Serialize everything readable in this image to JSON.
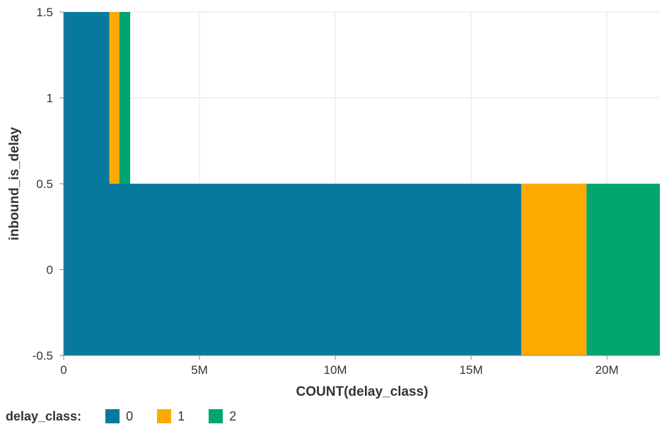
{
  "chart_data": {
    "type": "bar",
    "orientation": "horizontal",
    "stacked": true,
    "xlabel": "COUNT(delay_class)",
    "ylabel": "inbound_is_delay",
    "categories": [
      0,
      1
    ],
    "series": [
      {
        "name": "0",
        "color": "#07799f",
        "values": [
          16850000,
          1680000
        ]
      },
      {
        "name": "1",
        "color": "#ffaa00",
        "values": [
          2400000,
          370000
        ]
      },
      {
        "name": "2",
        "color": "#00a56f",
        "values": [
          2700000,
          400000
        ]
      }
    ],
    "xlim": [
      0,
      21950000
    ],
    "ylim": [
      -0.5,
      1.5
    ],
    "x_ticks": [
      {
        "value": 0,
        "label": "0"
      },
      {
        "value": 5000000,
        "label": "5M"
      },
      {
        "value": 10000000,
        "label": "10M"
      },
      {
        "value": 15000000,
        "label": "15M"
      },
      {
        "value": 20000000,
        "label": "20M"
      }
    ],
    "y_ticks": [
      {
        "value": -0.5,
        "label": "-0.5"
      },
      {
        "value": 0,
        "label": "0"
      },
      {
        "value": 0.5,
        "label": "0.5"
      },
      {
        "value": 1,
        "label": "1"
      },
      {
        "value": 1.5,
        "label": "1.5"
      }
    ],
    "grid": true,
    "legend": {
      "title": "delay_class:",
      "placement": "bottom-left",
      "entries": [
        {
          "label": "0",
          "color": "#07799f"
        },
        {
          "label": "1",
          "color": "#ffaa00"
        },
        {
          "label": "2",
          "color": "#00a56f"
        }
      ]
    }
  }
}
